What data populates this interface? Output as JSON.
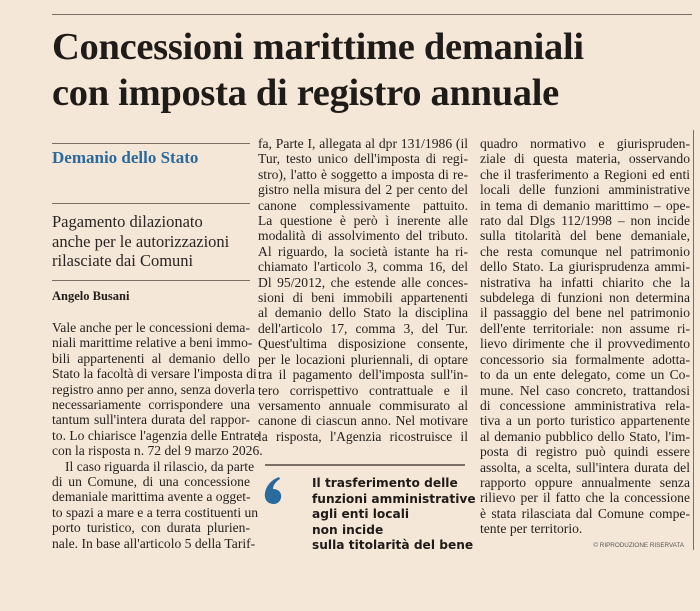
{
  "article": {
    "title_lines": [
      "Concessioni marittime demaniali",
      "con imposta di registro annuale"
    ],
    "kicker": "Demanio dello Stato",
    "subtitle_lines": [
      "Pagamento dilazionato",
      "anche per le autorizzazioni",
      "rilasciate dai Comuni"
    ],
    "author": "Angelo Busani",
    "columns": [
      [
        [
          "Vale anche per le concessioni dema-",
          "niali marittime relative a beni immo-",
          "bili appartenenti al demanio dello",
          "Stato la facoltà di versare l'imposta di",
          "registro anno per anno, senza doverla",
          "necessariamente corrispondere una",
          "tantum sull'intera durata del rappor-",
          "to. Lo chiarisce l'agenzia delle Entrate",
          "con la risposta n. 72 del 9 marzo 2026."
        ],
        [
          "Il caso riguarda il rilascio, da parte",
          "di un Comune, di una concessione",
          "demaniale marittima avente a ogget-",
          "to spazi a mare e a terra costituenti un",
          "porto turistico, con durata plurien-",
          "nale. In base all'articolo 5 della Tarif-"
        ]
      ],
      [
        [
          "fa, Parte I, allegata al dpr 131/1986 (il",
          "Tur, testo unico dell'imposta di regi-",
          "stro), l'atto è soggetto a imposta di re-",
          "gistro nella misura del 2 per cento del",
          "canone complessivamente pattuito.",
          "La questione è però ì inerente alle",
          "modalità di assolvimento del tributo.",
          "Al riguardo, la società istante ha ri-",
          "chiamato l'articolo 3, comma 16, del",
          "Dl 95/2012, che estende alle conces-",
          "sioni di beni immobili appartenenti",
          "al demanio dello Stato la disciplina",
          "dell'articolo 17, comma 3, del Tur.",
          "Quest'ultima disposizione consente,",
          "per le locazioni pluriennali, di optare",
          "tra il pagamento dell'imposta sull'in-",
          "tero corrispettivo contrattuale e il",
          "versamento annuale commisurato al",
          "canone di ciascun anno. Nel motivare",
          "la risposta, l'Agenzia ricostruisce il"
        ]
      ],
      [
        [
          "quadro normativo e giurispruden-",
          "ziale di questa materia, osservando",
          "che il trasferimento a Regioni ed enti",
          "locali delle funzioni amministrative",
          "in tema di demanio marittimo – ope-",
          "rato dal Dlgs 112/1998 – non incide",
          "sulla titolarità del bene demaniale,",
          "che resta comunque nel patrimonio",
          "dello Stato. La giurisprudenza ammi-",
          "nistrativa ha infatti chiarito che la",
          "subdelega di funzioni non determina",
          "il passaggio del bene nel patrimonio",
          "dell'ente territoriale: non assume ri-",
          "lievo dirimente che il provvedimento",
          "concessorio sia formalmente adotta-",
          "to da un ente delegato, come un Co-",
          "mune. Nel caso concreto, trattandosi",
          "di concessione amministrativa rela-",
          "tiva a un porto turistico appartenente",
          "al demanio pubblico dello Stato, l'im-",
          "posta di registro può quindi essere",
          "assolta, a scelta, sull'intera durata del",
          "rapporto oppure annualmente senza",
          "rilievo per il fatto che la concessione",
          "è stata rilasciata dal Comune compe-",
          "tente per territorio."
        ]
      ]
    ],
    "pull_quote_lines": [
      "Il trasferimento delle",
      "funzioni amministrative",
      "agli enti locali",
      "non incide",
      "sulla titolarità del bene"
    ],
    "pull_quote_icon": "quote-mark-icon",
    "copyright": "© RIPRODUZIONE RISERVATA"
  },
  "colors": {
    "background": "#f5e7d8",
    "accent": "#2b6a9d",
    "text": "#231f1c"
  }
}
